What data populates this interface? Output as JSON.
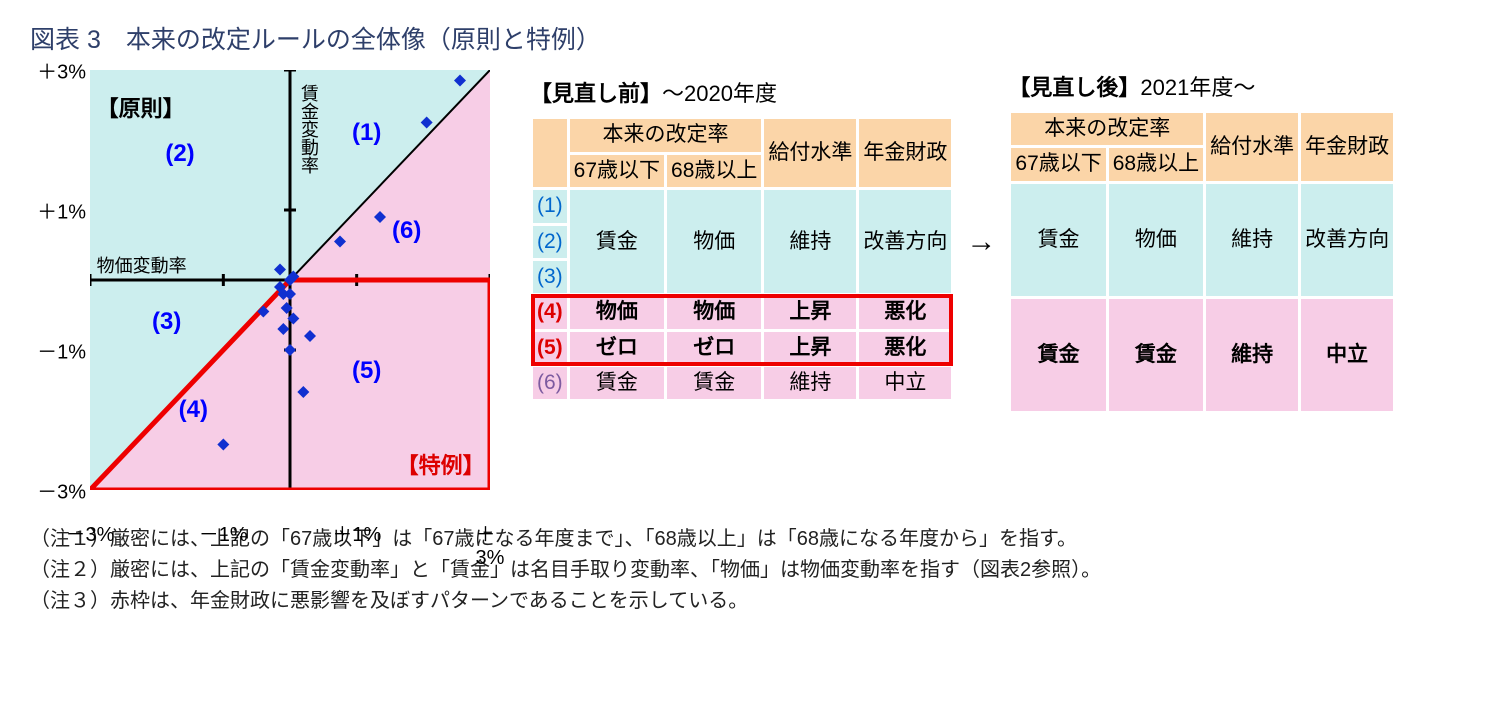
{
  "title": "図表 3　本来の改定ルールの全体像（原則と特例）",
  "scatter": {
    "xlim": [
      -3,
      3
    ],
    "ylim": [
      -3,
      3
    ],
    "ticks": [
      "－3%",
      "－1%",
      "＋1%",
      "＋3%"
    ],
    "tick_positions": [
      -3,
      -1,
      1,
      3
    ],
    "x_axis_label": "物価変動率",
    "y_axis_label": "賃金変動率",
    "principle_label": "【原則】",
    "exception_label": "【特例】",
    "region_labels": [
      "(1)",
      "(2)",
      "(3)",
      "(4)",
      "(5)",
      "(6)"
    ],
    "region_label_positions": [
      {
        "x": 1.2,
        "y": 2.1
      },
      {
        "x": -1.6,
        "y": 1.8
      },
      {
        "x": -1.8,
        "y": -0.6
      },
      {
        "x": -1.4,
        "y": -1.85
      },
      {
        "x": 1.2,
        "y": -1.3
      },
      {
        "x": 1.8,
        "y": 0.7
      }
    ],
    "bg_cyan": "#cceeee",
    "bg_pink": "#f7cde6",
    "axis_color": "#000000",
    "diag_color": "#000000",
    "red_line_color": "#ee0000",
    "red_line_width": 5,
    "marker_color": "#1030d0",
    "marker_size": 12,
    "points": [
      [
        -0.1,
        -0.7
      ],
      [
        0.05,
        -0.55
      ],
      [
        0.0,
        -1.0
      ],
      [
        0.05,
        0.05
      ],
      [
        -1.0,
        -2.35
      ],
      [
        -0.05,
        -0.4
      ],
      [
        0.2,
        -1.6
      ],
      [
        0.0,
        0.0
      ],
      [
        -0.15,
        -0.1
      ],
      [
        0.0,
        -0.2
      ],
      [
        2.55,
        2.85
      ],
      [
        -0.15,
        0.15
      ],
      [
        1.35,
        0.9
      ],
      [
        0.75,
        0.55
      ],
      [
        -0.1,
        -0.2
      ],
      [
        2.05,
        2.25
      ],
      [
        0.3,
        -0.8
      ],
      [
        -0.4,
        -0.45
      ]
    ]
  },
  "tables": {
    "before_title_bold": "【見直し前】",
    "before_title_rest": "～2020年度",
    "after_title_bold": "【見直し後】",
    "after_title_rest": "2021年度～",
    "header_span": "本来の改定率",
    "h1": "67歳以下",
    "h2": "68歳以上",
    "h3": "給付水準",
    "h4": "年金財政",
    "row_labels": [
      "(1)",
      "(2)",
      "(3)",
      "(4)",
      "(5)",
      "(6)"
    ],
    "before_top": [
      "賃金",
      "物価",
      "維持",
      "改善方向"
    ],
    "before_r4": [
      "物価",
      "物価",
      "上昇",
      "悪化"
    ],
    "before_r5": [
      "ゼロ",
      "ゼロ",
      "上昇",
      "悪化"
    ],
    "before_r6": [
      "賃金",
      "賃金",
      "維持",
      "中立"
    ],
    "after_top": [
      "賃金",
      "物価",
      "維持",
      "改善方向"
    ],
    "after_bot": [
      "賃金",
      "賃金",
      "維持",
      "中立"
    ],
    "arrow": "→",
    "colors": {
      "orange": "#fbd5a8",
      "cyan": "#cceeee",
      "pink": "#f7cde6",
      "red": "#ee0000"
    }
  },
  "notes": {
    "n1": "（注１）厳密には、上記の「67歳以下」は「67歳になる年度まで」、「68歳以上」は「68歳になる年度から」を指す。",
    "n2": "（注２）厳密には、上記の「賃金変動率」と「賃金」は名目手取り変動率、「物価」は物価変動率を指す（図表2参照）。",
    "n3": "（注３）赤枠は、年金財政に悪影響を及ぼすパターンであることを示している。"
  }
}
